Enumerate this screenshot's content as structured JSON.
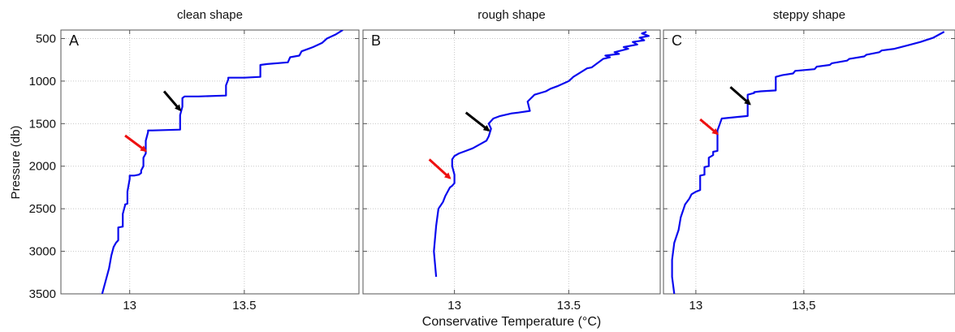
{
  "figure": {
    "ylabel": "Pressure (db)",
    "xlabel": "Conservative Temperature (°C)"
  },
  "colors": {
    "profile": "#0a0aee",
    "black_arrow": "#000000",
    "red_arrow": "#ee1111",
    "grid": "#c8c8c8"
  },
  "chart_data": [
    {
      "type": "line",
      "title": "clean shape",
      "panel_label": "A",
      "xlim": [
        12.7,
        14.0
      ],
      "ylim": [
        3500,
        400
      ],
      "y_reversed": true,
      "xticks": [
        13,
        13.5
      ],
      "xtick_labels": [
        "13",
        "13.5"
      ],
      "yticks": [
        500,
        1000,
        1500,
        2000,
        2500,
        3000,
        3500
      ],
      "ytick_labels": [
        "500",
        "1000",
        "1500",
        "2000",
        "2500",
        "3000",
        "3500"
      ],
      "grid": true,
      "series": [
        {
          "x": [
            12.88,
            12.91,
            12.92,
            12.93,
            12.94,
            12.95,
            12.95,
            12.97,
            12.97,
            12.98,
            12.98,
            12.99,
            12.99,
            13.0,
            13.0,
            13.0,
            13.02,
            13.04,
            13.05,
            13.05,
            13.06,
            13.06,
            13.07,
            13.07,
            13.08,
            13.08,
            13.1,
            13.22,
            13.22,
            13.23,
            13.23,
            13.24,
            13.3,
            13.42,
            13.42,
            13.43,
            13.43,
            13.5,
            13.57,
            13.57,
            13.6,
            13.69,
            13.7,
            13.74,
            13.75,
            13.8,
            13.84,
            13.86,
            13.9,
            13.93
          ],
          "y": [
            3500,
            3200,
            3050,
            2950,
            2900,
            2870,
            2720,
            2710,
            2560,
            2460,
            2450,
            2440,
            2300,
            2150,
            2120,
            2110,
            2110,
            2100,
            2080,
            2050,
            2000,
            1900,
            1850,
            1700,
            1600,
            1580,
            1580,
            1570,
            1400,
            1300,
            1200,
            1180,
            1180,
            1170,
            1050,
            980,
            960,
            960,
            950,
            810,
            800,
            780,
            720,
            700,
            650,
            600,
            550,
            500,
            450,
            400
          ]
        }
      ],
      "annotations": [
        {
          "type": "arrow",
          "color": "black",
          "tail": [
            13.15,
            1120
          ],
          "head": [
            13.22,
            1340
          ]
        },
        {
          "type": "arrow",
          "color": "red",
          "tail": [
            12.98,
            1640
          ],
          "head": [
            13.07,
            1820
          ]
        }
      ]
    },
    {
      "type": "line",
      "title": "rough shape",
      "panel_label": "B",
      "xlim": [
        12.6,
        13.9
      ],
      "ylim": [
        3500,
        400
      ],
      "y_reversed": true,
      "xticks": [
        13,
        13.5
      ],
      "xtick_labels": [
        "13",
        "13.5"
      ],
      "yticks": [
        500,
        1000,
        1500,
        2000,
        2500,
        3000,
        3500
      ],
      "ytick_labels": [
        "",
        "",
        "",
        "",
        "",
        "",
        ""
      ],
      "grid": true,
      "series": [
        {
          "x": [
            12.92,
            12.91,
            12.92,
            12.93,
            12.95,
            12.96,
            12.98,
            12.99,
            13.0,
            13.0,
            12.99,
            12.99,
            13.0,
            13.02,
            13.05,
            13.08,
            13.12,
            13.14,
            13.15,
            13.16,
            13.15,
            13.17,
            13.2,
            13.25,
            13.28,
            13.33,
            13.32,
            13.35,
            13.4,
            13.42,
            13.45,
            13.5,
            13.52,
            13.55,
            13.58,
            13.6,
            13.62,
            13.64,
            13.65,
            13.68,
            13.66,
            13.72,
            13.7,
            13.76,
            13.74,
            13.8,
            13.78,
            13.83,
            13.81,
            13.85,
            13.82,
            13.84
          ],
          "y": [
            3300,
            3000,
            2700,
            2500,
            2420,
            2350,
            2250,
            2230,
            2200,
            2100,
            2000,
            1920,
            1880,
            1850,
            1820,
            1790,
            1730,
            1700,
            1650,
            1560,
            1500,
            1440,
            1410,
            1380,
            1370,
            1350,
            1240,
            1160,
            1120,
            1090,
            1060,
            1000,
            950,
            900,
            850,
            840,
            800,
            760,
            740,
            720,
            700,
            680,
            660,
            620,
            600,
            570,
            540,
            520,
            490,
            470,
            440,
            420
          ]
        }
      ],
      "annotations": [
        {
          "type": "arrow",
          "color": "black",
          "tail": [
            13.05,
            1370
          ],
          "head": [
            13.15,
            1580
          ]
        },
        {
          "type": "arrow",
          "color": "red",
          "tail": [
            12.89,
            1920
          ],
          "head": [
            12.98,
            2140
          ]
        }
      ]
    },
    {
      "type": "line",
      "title": "steppy shape",
      "panel_label": "C",
      "xlim": [
        12.85,
        14.2
      ],
      "ylim": [
        3500,
        400
      ],
      "y_reversed": true,
      "xticks": [
        13,
        13.5
      ],
      "xtick_labels": [
        "13",
        "13,5"
      ],
      "yticks": [
        500,
        1000,
        1500,
        2000,
        2500,
        3000,
        3500
      ],
      "ytick_labels": [
        "",
        "",
        "",
        "",
        "",
        "",
        ""
      ],
      "grid": true,
      "series": [
        {
          "x": [
            12.9,
            12.89,
            12.89,
            12.9,
            12.92,
            12.93,
            12.95,
            12.97,
            12.98,
            13.0,
            13.02,
            13.02,
            13.04,
            13.04,
            13.06,
            13.06,
            13.08,
            13.08,
            13.1,
            13.1,
            13.12,
            13.2,
            13.24,
            13.24,
            13.27,
            13.27,
            13.3,
            13.37,
            13.37,
            13.4,
            13.45,
            13.46,
            13.55,
            13.56,
            13.62,
            13.63,
            13.7,
            13.71,
            13.78,
            13.79,
            13.85,
            13.86,
            13.92,
            13.98,
            14.04,
            14.1,
            14.15
          ],
          "y": [
            3500,
            3300,
            3100,
            2900,
            2750,
            2600,
            2450,
            2380,
            2330,
            2300,
            2280,
            2110,
            2100,
            2010,
            2000,
            1900,
            1870,
            1830,
            1820,
            1580,
            1440,
            1420,
            1410,
            1160,
            1140,
            1130,
            1120,
            1110,
            950,
            930,
            910,
            880,
            860,
            830,
            810,
            790,
            760,
            740,
            710,
            690,
            660,
            640,
            620,
            580,
            540,
            490,
            420
          ]
        }
      ],
      "annotations": [
        {
          "type": "arrow",
          "color": "black",
          "tail": [
            13.16,
            1070
          ],
          "head": [
            13.25,
            1270
          ]
        },
        {
          "type": "arrow",
          "color": "red",
          "tail": [
            13.02,
            1450
          ],
          "head": [
            13.1,
            1620
          ]
        }
      ]
    }
  ]
}
